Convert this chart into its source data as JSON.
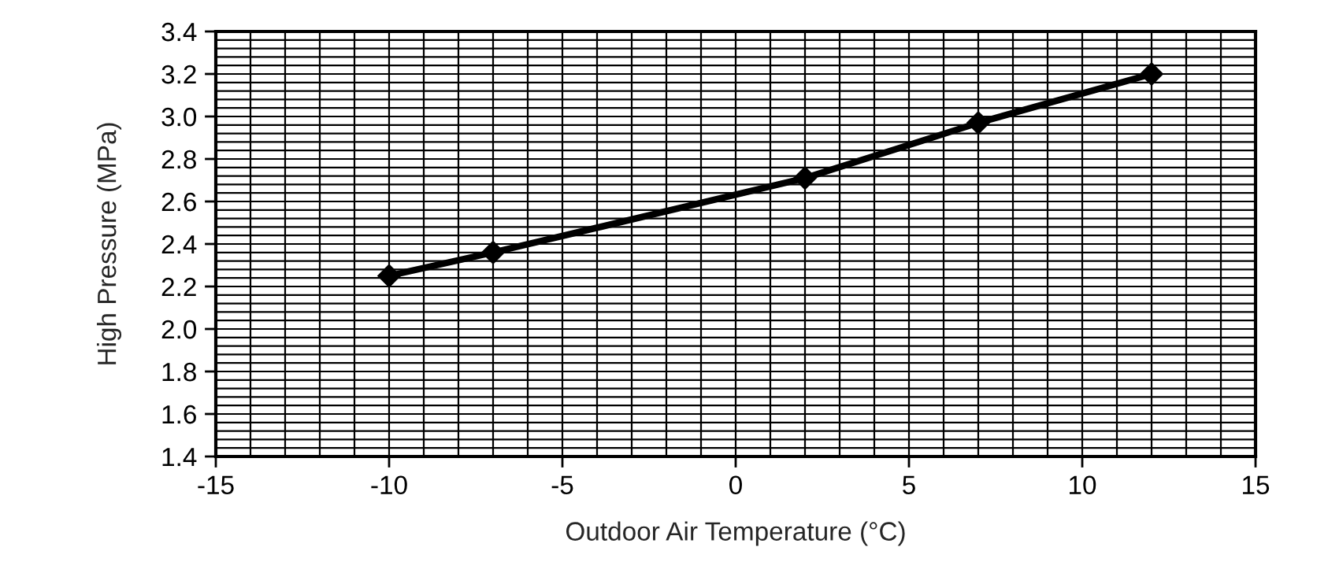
{
  "chart_data": {
    "type": "line",
    "xlabel": "Outdoor Air Temperature (°C)",
    "ylabel": "High Pressure (MPa)",
    "x": [
      -10,
      -7,
      2,
      7,
      12
    ],
    "series": [
      {
        "color": "#000000",
        "values": [
          2.25,
          2.36,
          2.71,
          2.97,
          3.2
        ]
      }
    ],
    "xlim": [
      -15,
      15
    ],
    "xticks": [
      -15,
      -10,
      -5,
      0,
      5,
      10,
      15
    ],
    "ylim": [
      1.4,
      3.4
    ],
    "yticks": [
      {
        "value": 1.4,
        "label": "1.4"
      },
      {
        "value": 1.6,
        "label": "1.6"
      },
      {
        "value": 1.8,
        "label": "1.8"
      },
      {
        "value": 2.0,
        "label": "2.0"
      },
      {
        "value": 2.2,
        "label": "2.2"
      },
      {
        "value": 2.4,
        "label": "2.4"
      },
      {
        "value": 2.6,
        "label": "2.6"
      },
      {
        "value": 2.8,
        "label": "2.8"
      },
      {
        "value": 3.0,
        "label": "3.0"
      },
      {
        "value": 3.2,
        "label": "3.2"
      },
      {
        "value": 3.4,
        "label": "3.4"
      }
    ],
    "grid": true,
    "marker": "diamond",
    "line_style": "solid",
    "legend": false
  }
}
